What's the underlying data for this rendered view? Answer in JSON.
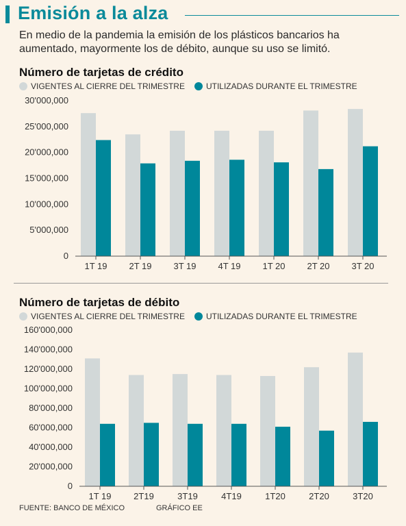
{
  "header": {
    "title": "Emisión a la alza",
    "subtitle": "En medio de la pandemia la emisión de los plásticos bancarios ha aumentado, mayormente los de débito, aunque su uso se limitó."
  },
  "colors": {
    "accent": "#0a8a9a",
    "vigentes": "#d2d8d8",
    "utilizadas": "#00879a"
  },
  "chart_data": [
    {
      "type": "bar",
      "title": "Número de tarjetas de crédito",
      "legend": [
        "VIGENTES AL CIERRE DEL TRIMESTRE",
        "UTILIZADAS DURANTE EL TRIMESTRE"
      ],
      "categories": [
        "1T 19",
        "2T 19",
        "3T 19",
        "4T 19",
        "1T 20",
        "2T 20",
        "3T 20"
      ],
      "series": [
        {
          "name": "VIGENTES AL CIERRE DEL TRIMESTRE",
          "values": [
            27600000,
            23500000,
            24200000,
            24200000,
            24200000,
            28100000,
            28400000
          ]
        },
        {
          "name": "UTILIZADAS DURANTE EL TRIMESTRE",
          "values": [
            22400000,
            17900000,
            18400000,
            18600000,
            18100000,
            16800000,
            21200000
          ]
        }
      ],
      "yticks": [
        "0",
        "5'000,000",
        "10'000,000",
        "15'000,000",
        "20'000,000",
        "25'000,000",
        "30'000,000"
      ],
      "ylim": [
        0,
        30000000
      ],
      "grid": false,
      "legend_position": "top-left"
    },
    {
      "type": "bar",
      "title": "Número de tarjetas de débito",
      "legend": [
        "VIGENTES AL CIERRE DEL TRIMESTRE",
        "UTILIZADAS DURANTE EL TRIMESTRE"
      ],
      "categories": [
        "1T 19",
        "2T19",
        "3T19",
        "4T19",
        "1T20",
        "2T20",
        "3T20"
      ],
      "series": [
        {
          "name": "VIGENTES AL CIERRE DEL TRIMESTRE",
          "values": [
            131000000,
            114000000,
            115000000,
            114000000,
            113000000,
            122000000,
            137000000
          ]
        },
        {
          "name": "UTILIZADAS DURANTE EL TRIMESTRE",
          "values": [
            64000000,
            65000000,
            64000000,
            64000000,
            61000000,
            57000000,
            66000000
          ]
        }
      ],
      "yticks": [
        "0",
        "20'000,000",
        "40'000,000",
        "60'000,000",
        "80'000,000",
        "100'000,000",
        "120'000,000",
        "140'000,000",
        "160'000,000"
      ],
      "ylim": [
        0,
        160000000
      ],
      "grid": false,
      "legend_position": "top-left"
    }
  ],
  "footer": {
    "source": "FUENTE: BANCO DE MÉXICO",
    "credit": "GRÁFICO EE"
  }
}
